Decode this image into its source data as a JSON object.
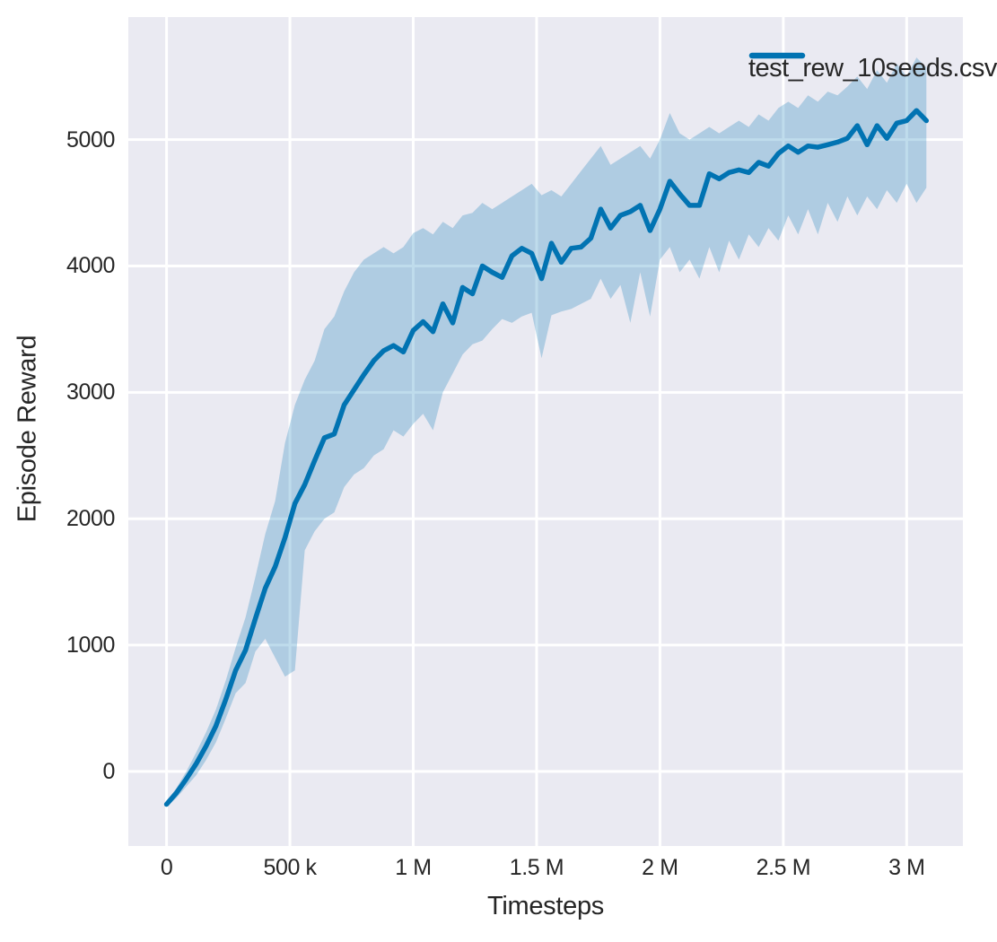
{
  "chart_data": {
    "type": "line",
    "title": "",
    "xlabel": "Timesteps",
    "ylabel": "Episode Reward",
    "grid": true,
    "background_color": "#eaeaf2",
    "grid_color": "#ffffff",
    "text_color": "#262626",
    "xlim": [
      -155000,
      3228000
    ],
    "ylim": [
      -590,
      5970
    ],
    "x_ticks": [
      {
        "value": 0,
        "label": "0"
      },
      {
        "value": 500000,
        "label": "500 k"
      },
      {
        "value": 1000000,
        "label": "1 M"
      },
      {
        "value": 1500000,
        "label": "1.5 M"
      },
      {
        "value": 2000000,
        "label": "2 M"
      },
      {
        "value": 2500000,
        "label": "2.5 M"
      },
      {
        "value": 3000000,
        "label": "3 M"
      }
    ],
    "y_ticks": [
      {
        "value": 0,
        "label": "0"
      },
      {
        "value": 1000,
        "label": "1000"
      },
      {
        "value": 2000,
        "label": "2000"
      },
      {
        "value": 3000,
        "label": "3000"
      },
      {
        "value": 4000,
        "label": "4000"
      },
      {
        "value": 5000,
        "label": "5000"
      }
    ],
    "legend": {
      "position": "upper right",
      "entries": [
        {
          "label": "test_rew_10seeds.csv",
          "color": "#0173b2"
        }
      ]
    },
    "series": [
      {
        "name": "test_rew_10seeds.csv",
        "color": "#0173b2",
        "band_opacity": 0.25,
        "x": [
          0,
          40000,
          80000,
          120000,
          160000,
          200000,
          240000,
          280000,
          320000,
          360000,
          400000,
          440000,
          480000,
          520000,
          560000,
          600000,
          640000,
          680000,
          720000,
          760000,
          800000,
          840000,
          880000,
          920000,
          960000,
          1000000,
          1040000,
          1080000,
          1120000,
          1160000,
          1200000,
          1240000,
          1280000,
          1320000,
          1360000,
          1400000,
          1440000,
          1480000,
          1520000,
          1560000,
          1600000,
          1640000,
          1680000,
          1720000,
          1760000,
          1800000,
          1840000,
          1880000,
          1920000,
          1960000,
          2000000,
          2040000,
          2080000,
          2120000,
          2160000,
          2200000,
          2240000,
          2280000,
          2320000,
          2360000,
          2400000,
          2440000,
          2480000,
          2520000,
          2560000,
          2600000,
          2640000,
          2680000,
          2720000,
          2760000,
          2800000,
          2840000,
          2880000,
          2920000,
          2960000,
          3000000,
          3040000,
          3080000
        ],
        "mean": [
          -260,
          -170,
          -60,
          60,
          200,
          360,
          570,
          800,
          960,
          1210,
          1450,
          1620,
          1850,
          2120,
          2270,
          2460,
          2640,
          2670,
          2900,
          3020,
          3140,
          3250,
          3330,
          3370,
          3320,
          3490,
          3560,
          3480,
          3700,
          3550,
          3830,
          3780,
          4000,
          3950,
          3910,
          4080,
          4140,
          4100,
          3900,
          4180,
          4030,
          4140,
          4150,
          4220,
          4450,
          4300,
          4400,
          4430,
          4480,
          4280,
          4450,
          4670,
          4570,
          4480,
          4480,
          4730,
          4690,
          4740,
          4760,
          4740,
          4820,
          4790,
          4890,
          4950,
          4900,
          4950,
          4940,
          4960,
          4980,
          5010,
          5110,
          4960,
          5110,
          5010,
          5130,
          5150,
          5230,
          5150
        ],
        "lower": [
          -280,
          -210,
          -120,
          -30,
          90,
          230,
          420,
          620,
          700,
          950,
          1050,
          900,
          750,
          800,
          1750,
          1900,
          2000,
          2050,
          2250,
          2350,
          2400,
          2500,
          2550,
          2700,
          2650,
          2750,
          2830,
          2700,
          3000,
          3150,
          3300,
          3380,
          3410,
          3500,
          3580,
          3550,
          3600,
          3630,
          3270,
          3610,
          3640,
          3660,
          3700,
          3740,
          3900,
          3740,
          3850,
          3550,
          3950,
          3600,
          4050,
          4150,
          3950,
          4050,
          3900,
          4150,
          3950,
          4200,
          4050,
          4250,
          4150,
          4300,
          4200,
          4400,
          4250,
          4450,
          4250,
          4500,
          4350,
          4550,
          4400,
          4550,
          4450,
          4600,
          4500,
          4650,
          4500,
          4620
        ],
        "upper": [
          -240,
          -130,
          0,
          150,
          310,
          490,
          720,
          980,
          1220,
          1540,
          1880,
          2140,
          2600,
          2900,
          3100,
          3250,
          3500,
          3600,
          3800,
          3950,
          4050,
          4100,
          4150,
          4100,
          4150,
          4260,
          4300,
          4250,
          4350,
          4300,
          4400,
          4420,
          4500,
          4450,
          4500,
          4550,
          4600,
          4650,
          4560,
          4600,
          4550,
          4650,
          4750,
          4850,
          4950,
          4800,
          4850,
          4900,
          4950,
          4850,
          5000,
          5210,
          5050,
          5000,
          5050,
          5100,
          5050,
          5100,
          5150,
          5100,
          5200,
          5150,
          5250,
          5300,
          5250,
          5350,
          5300,
          5380,
          5350,
          5420,
          5500,
          5400,
          5550,
          5450,
          5600,
          5500,
          5650,
          5570
        ]
      }
    ]
  }
}
